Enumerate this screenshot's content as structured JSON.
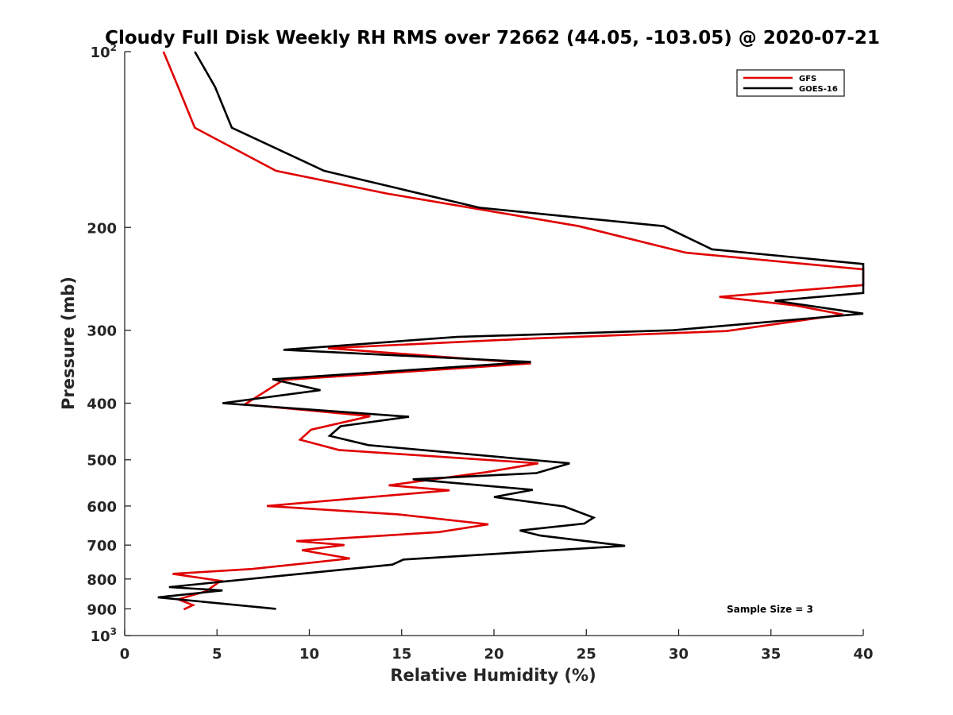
{
  "chart_data": {
    "type": "line",
    "title": "Cloudy Full Disk Weekly RH RMS over 72662 (44.05, -103.05) @ 2020-07-21",
    "xlabel": "Relative Humidity (%)",
    "ylabel": "Pressure (mb)",
    "xlim": [
      0,
      40
    ],
    "ylim": [
      100,
      1000
    ],
    "y_scale": "log",
    "y_reversed": true,
    "x_ticks": [
      "0",
      "5",
      "10",
      "15",
      "20",
      "25",
      "30",
      "35",
      "40"
    ],
    "y_ticks": [
      {
        "value": 100,
        "base": "10",
        "exp": "2"
      },
      {
        "value": 200,
        "label": "200"
      },
      {
        "value": 300,
        "label": "300"
      },
      {
        "value": 400,
        "label": "400"
      },
      {
        "value": 500,
        "label": "500"
      },
      {
        "value": 600,
        "label": "600"
      },
      {
        "value": 700,
        "label": "700"
      },
      {
        "value": 800,
        "label": "800"
      },
      {
        "value": 900,
        "label": "900"
      },
      {
        "value": 1000,
        "base": "10",
        "exp": "3"
      }
    ],
    "legend": {
      "position": "top-right"
    },
    "annotation": "Sample Size = 3",
    "series": [
      {
        "name": "GFS",
        "color": "#e00000",
        "points": [
          [
            2.1,
            100
          ],
          [
            2.9,
            115
          ],
          [
            3.8,
            135
          ],
          [
            8.2,
            160
          ],
          [
            14.2,
            175
          ],
          [
            24.6,
            199
          ],
          [
            30.4,
            221
          ],
          [
            40.0,
            236
          ],
          [
            40.0,
            251
          ],
          [
            32.2,
            263
          ],
          [
            36.3,
            272
          ],
          [
            38.9,
            282
          ],
          [
            32.6,
            301
          ],
          [
            22.0,
            310
          ],
          [
            11.0,
            322
          ],
          [
            22.0,
            342
          ],
          [
            8.6,
            365
          ],
          [
            6.5,
            402
          ],
          [
            13.3,
            421
          ],
          [
            10.1,
            444
          ],
          [
            9.5,
            462
          ],
          [
            11.6,
            481
          ],
          [
            22.4,
            507
          ],
          [
            19.6,
            525
          ],
          [
            14.3,
            553
          ],
          [
            17.6,
            564
          ],
          [
            7.7,
            600
          ],
          [
            14.8,
            620
          ],
          [
            19.7,
            645
          ],
          [
            17.0,
            665
          ],
          [
            9.3,
            689
          ],
          [
            11.9,
            700
          ],
          [
            9.6,
            714
          ],
          [
            12.2,
            738
          ],
          [
            6.9,
            769
          ],
          [
            2.6,
            784
          ],
          [
            5.2,
            806
          ],
          [
            4.4,
            840
          ],
          [
            2.9,
            867
          ],
          [
            3.7,
            887
          ],
          [
            3.2,
            902
          ]
        ]
      },
      {
        "name": "GOES-16",
        "color": "#000000",
        "points": [
          [
            3.8,
            100
          ],
          [
            4.9,
            115
          ],
          [
            5.8,
            135
          ],
          [
            10.8,
            160
          ],
          [
            19.2,
            185
          ],
          [
            29.2,
            199
          ],
          [
            31.8,
            218
          ],
          [
            40.0,
            231
          ],
          [
            40.0,
            259
          ],
          [
            35.2,
            267
          ],
          [
            40.0,
            281
          ],
          [
            29.7,
            300
          ],
          [
            18.0,
            308
          ],
          [
            8.6,
            324
          ],
          [
            22.0,
            340
          ],
          [
            8.0,
            364
          ],
          [
            10.6,
            380
          ],
          [
            5.3,
            400
          ],
          [
            15.4,
            422
          ],
          [
            11.7,
            438
          ],
          [
            11.1,
            455
          ],
          [
            13.2,
            472
          ],
          [
            24.1,
            507
          ],
          [
            22.3,
            527
          ],
          [
            15.6,
            540
          ],
          [
            22.1,
            563
          ],
          [
            20.0,
            579
          ],
          [
            23.8,
            601
          ],
          [
            25.4,
            628
          ],
          [
            24.9,
            643
          ],
          [
            21.4,
            661
          ],
          [
            22.5,
            674
          ],
          [
            27.1,
            702
          ],
          [
            15.1,
            741
          ],
          [
            14.5,
            756
          ],
          [
            2.4,
            826
          ],
          [
            5.3,
            837
          ],
          [
            1.8,
            860
          ],
          [
            8.2,
            900
          ]
        ]
      }
    ]
  }
}
